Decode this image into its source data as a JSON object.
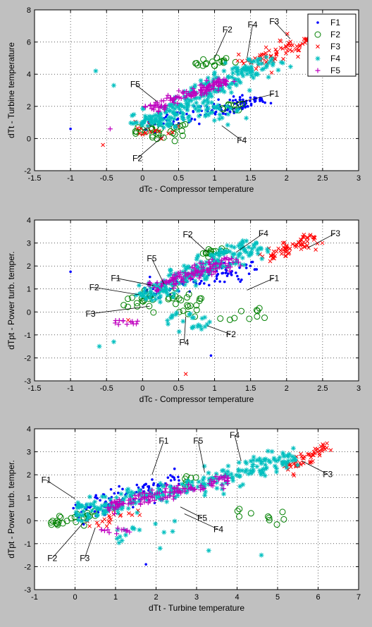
{
  "colors": {
    "F1": "#0000ff",
    "F2": "#008000",
    "F3": "#ff0000",
    "F4": "#00bfbf",
    "F5": "#bf00bf",
    "figure_bg": "#c0c0c0",
    "axes_bg": "#ffffff"
  },
  "chart_data": [
    {
      "type": "scatter",
      "xlabel": "dTc - Compressor temperature",
      "ylabel": "dTt - Turbine temperature",
      "xlim": [
        -1.5,
        3
      ],
      "ylim": [
        -2,
        8
      ],
      "xticks": [
        -1.5,
        -1,
        -0.5,
        0,
        0.5,
        1,
        1.5,
        2,
        2.5,
        3
      ],
      "yticks": [
        -2,
        0,
        2,
        4,
        6,
        8
      ],
      "grid": true,
      "legend": {
        "placement": "top-right",
        "entries": [
          "F1",
          "F2",
          "F3",
          "F4",
          "F5"
        ]
      },
      "series": [
        {
          "name": "F1",
          "marker": "dot",
          "clusters": [
            {
              "x0": 0.0,
              "y0": 0.6,
              "x1": 1.6,
              "y1": 2.6,
              "spread": 0.25,
              "n": 80
            },
            {
              "x0": 1.0,
              "y0": 1.5,
              "x1": 1.6,
              "y1": 2.5,
              "spread": 0.2,
              "n": 40
            }
          ],
          "points": [
            {
              "x": -1.0,
              "y": 0.6
            }
          ]
        },
        {
          "name": "F2",
          "marker": "circle",
          "clusters": [
            {
              "x0": 0.8,
              "y0": 4.5,
              "x1": 1.2,
              "y1": 5.0,
              "spread": 0.15,
              "n": 18
            },
            {
              "x0": -0.1,
              "y0": 0.5,
              "x1": 0.6,
              "y1": 0.4,
              "spread": 0.25,
              "n": 30
            },
            {
              "x0": 1.1,
              "y0": 2.0,
              "x1": 1.4,
              "y1": 2.0,
              "spread": 0.2,
              "n": 10
            }
          ],
          "points": []
        },
        {
          "name": "F3",
          "marker": "x",
          "clusters": [
            {
              "x0": 1.4,
              "y0": 4.5,
              "x1": 2.4,
              "y1": 6.3,
              "spread": 0.25,
              "n": 80
            },
            {
              "x0": -0.1,
              "y0": 0.5,
              "x1": 0.6,
              "y1": 0.5,
              "spread": 0.2,
              "n": 20
            }
          ],
          "points": [
            {
              "x": -0.55,
              "y": -0.4
            }
          ]
        },
        {
          "name": "F4",
          "marker": "star",
          "clusters": [
            {
              "x0": 0.0,
              "y0": 0.8,
              "x1": 1.8,
              "y1": 5.0,
              "spread": 0.3,
              "n": 220
            },
            {
              "x0": 0.2,
              "y0": 0.7,
              "x1": 1.2,
              "y1": 2.0,
              "spread": 0.35,
              "n": 60
            }
          ],
          "points": [
            {
              "x": -0.65,
              "y": 4.2
            },
            {
              "x": -0.4,
              "y": 3.3
            }
          ]
        },
        {
          "name": "F5",
          "marker": "plus",
          "clusters": [
            {
              "x0": 0.1,
              "y0": 1.8,
              "x1": 1.2,
              "y1": 3.7,
              "spread": 0.15,
              "n": 130
            }
          ],
          "points": [
            {
              "x": -0.45,
              "y": 0.6
            }
          ]
        }
      ],
      "annotations": [
        {
          "text": "F2",
          "tx": 1.1,
          "ty": 6.6,
          "px": 1.0,
          "py": 5.0
        },
        {
          "text": "F4",
          "tx": 1.45,
          "ty": 6.9,
          "px": 1.45,
          "py": 5.0
        },
        {
          "text": "F3",
          "tx": 1.75,
          "ty": 7.1,
          "px": 2.05,
          "py": 6.2
        },
        {
          "text": "F5",
          "tx": -0.18,
          "ty": 3.2,
          "px": 0.2,
          "py": 2.3
        },
        {
          "text": "F1",
          "tx": 1.75,
          "ty": 2.6,
          "px": 1.3,
          "py": 2.2
        },
        {
          "text": "F4",
          "tx": 1.3,
          "ty": -0.3,
          "px": 1.1,
          "py": 0.8
        },
        {
          "text": "F2",
          "tx": -0.15,
          "ty": -1.4,
          "px": 0.3,
          "py": 0.2
        }
      ]
    },
    {
      "type": "scatter",
      "xlabel": "dTc - Compressor temperature",
      "ylabel": "dTpt - Power turb. temper.",
      "xlim": [
        -1.5,
        3
      ],
      "ylim": [
        -3,
        4
      ],
      "xticks": [
        -1.5,
        -1,
        -0.5,
        0,
        0.5,
        1,
        1.5,
        2,
        2.5,
        3
      ],
      "yticks": [
        -3,
        -2,
        -1,
        0,
        1,
        2,
        3,
        4
      ],
      "grid": true,
      "series": [
        {
          "name": "F1",
          "marker": "dot",
          "clusters": [
            {
              "x0": 0.0,
              "y0": 0.8,
              "x1": 1.6,
              "y1": 2.0,
              "spread": 0.2,
              "n": 90
            }
          ],
          "points": [
            {
              "x": -1.0,
              "y": 1.75
            },
            {
              "x": 0.95,
              "y": -1.9
            }
          ]
        },
        {
          "name": "F2",
          "marker": "circle",
          "clusters": [
            {
              "x0": 0.85,
              "y0": 2.5,
              "x1": 1.2,
              "y1": 2.7,
              "spread": 0.12,
              "n": 14
            },
            {
              "x0": -0.3,
              "y0": 0.6,
              "x1": 0.8,
              "y1": 0.3,
              "spread": 0.25,
              "n": 40
            },
            {
              "x0": 1.0,
              "y0": -0.2,
              "x1": 1.7,
              "y1": 0.0,
              "spread": 0.2,
              "n": 10
            }
          ],
          "points": []
        },
        {
          "name": "F3",
          "marker": "x",
          "clusters": [
            {
              "x0": 1.7,
              "y0": 2.3,
              "x1": 2.4,
              "y1": 3.3,
              "spread": 0.18,
              "n": 70
            }
          ],
          "points": [
            {
              "x": 0.6,
              "y": -2.7
            },
            {
              "x": -0.2,
              "y": -0.35
            }
          ]
        },
        {
          "name": "F4",
          "marker": "star",
          "clusters": [
            {
              "x0": 0.0,
              "y0": 0.6,
              "x1": 1.6,
              "y1": 3.0,
              "spread": 0.25,
              "n": 220
            },
            {
              "x0": 0.3,
              "y0": -0.3,
              "x1": 0.9,
              "y1": -0.6,
              "spread": 0.25,
              "n": 25
            }
          ],
          "points": [
            {
              "x": -0.6,
              "y": -1.5
            },
            {
              "x": -0.4,
              "y": -1.3
            }
          ]
        },
        {
          "name": "F5",
          "marker": "plus",
          "clusters": [
            {
              "x0": 0.1,
              "y0": 1.0,
              "x1": 1.3,
              "y1": 2.3,
              "spread": 0.15,
              "n": 110
            },
            {
              "x0": -0.4,
              "y0": -0.45,
              "x1": -0.05,
              "y1": -0.45,
              "spread": 0.06,
              "n": 12
            }
          ],
          "points": []
        }
      ],
      "annotations": [
        {
          "text": "F2",
          "tx": 0.55,
          "ty": 3.25,
          "px": 0.9,
          "py": 2.6
        },
        {
          "text": "F4",
          "tx": 1.6,
          "ty": 3.3,
          "px": 1.3,
          "py": 2.6
        },
        {
          "text": "F3",
          "tx": 2.6,
          "ty": 3.3,
          "px": 2.3,
          "py": 2.8
        },
        {
          "text": "F5",
          "tx": 0.05,
          "ty": 2.2,
          "px": 0.3,
          "py": 1.2
        },
        {
          "text": "F1",
          "tx": -0.45,
          "ty": 1.35,
          "px": 0.15,
          "py": 1.15
        },
        {
          "text": "F1",
          "tx": 1.75,
          "ty": 1.35,
          "px": 1.45,
          "py": 0.95
        },
        {
          "text": "F2",
          "tx": -0.75,
          "ty": 0.95,
          "px": -0.05,
          "py": 0.75
        },
        {
          "text": "F3",
          "tx": -0.8,
          "ty": -0.2,
          "px": 0.1,
          "py": 0.25
        },
        {
          "text": "F4",
          "tx": 0.5,
          "ty": -1.45,
          "px": 0.6,
          "py": -0.2
        },
        {
          "text": "F2",
          "tx": 1.15,
          "ty": -1.1,
          "px": 0.9,
          "py": -0.6
        }
      ]
    },
    {
      "type": "scatter",
      "xlabel": "dTt - Turbine temperature",
      "ylabel": "dTpt - Power turb. temper.",
      "xlim": [
        -1,
        7
      ],
      "ylim": [
        -3,
        4
      ],
      "xticks": [
        -1,
        0,
        1,
        2,
        3,
        4,
        5,
        6,
        7
      ],
      "yticks": [
        -3,
        -2,
        -1,
        0,
        1,
        2,
        3,
        4
      ],
      "grid": true,
      "series": [
        {
          "name": "F1",
          "marker": "dot",
          "clusters": [
            {
              "x0": 0.0,
              "y0": 0.3,
              "x1": 2.6,
              "y1": 1.8,
              "spread": 0.25,
              "n": 100
            }
          ],
          "points": [
            {
              "x": 1.75,
              "y": -1.9
            }
          ]
        },
        {
          "name": "F2",
          "marker": "circle",
          "clusters": [
            {
              "x0": -0.6,
              "y0": -0.1,
              "x1": 0.5,
              "y1": 0.2,
              "spread": 0.15,
              "n": 25
            },
            {
              "x0": 4.0,
              "y0": 0.5,
              "x1": 5.2,
              "y1": 0.2,
              "spread": 0.2,
              "n": 10
            },
            {
              "x0": 2.6,
              "y0": 1.6,
              "x1": 3.0,
              "y1": 1.9,
              "spread": 0.1,
              "n": 6
            }
          ],
          "points": []
        },
        {
          "name": "F3",
          "marker": "x",
          "clusters": [
            {
              "x0": 5.2,
              "y0": 2.3,
              "x1": 6.3,
              "y1": 3.3,
              "spread": 0.15,
              "n": 60
            },
            {
              "x0": 0.3,
              "y0": -0.2,
              "x1": 1.6,
              "y1": 0.5,
              "spread": 0.15,
              "n": 20
            }
          ],
          "points": []
        },
        {
          "name": "F4",
          "marker": "star",
          "clusters": [
            {
              "x0": 0.0,
              "y0": 0.3,
              "x1": 5.5,
              "y1": 2.7,
              "spread": 0.25,
              "n": 260
            },
            {
              "x0": 1.0,
              "y0": -0.6,
              "x1": 2.5,
              "y1": -0.5,
              "spread": 0.25,
              "n": 15
            }
          ],
          "points": [
            {
              "x": 3.3,
              "y": -1.3
            },
            {
              "x": 4.6,
              "y": -1.5
            },
            {
              "x": 2.1,
              "y": -1.2
            }
          ]
        },
        {
          "name": "F5",
          "marker": "plus",
          "clusters": [
            {
              "x0": 0.8,
              "y0": 0.6,
              "x1": 3.8,
              "y1": 1.8,
              "spread": 0.15,
              "n": 120
            },
            {
              "x0": 0.6,
              "y0": -0.45,
              "x1": 1.4,
              "y1": -0.45,
              "spread": 0.08,
              "n": 12
            }
          ],
          "points": []
        }
      ],
      "annotations": [
        {
          "text": "F1",
          "tx": 2.05,
          "ty": 3.35,
          "px": 1.9,
          "py": 2.0
        },
        {
          "text": "F5",
          "tx": 2.9,
          "ty": 3.35,
          "px": 3.2,
          "py": 2.1
        },
        {
          "text": "F4",
          "tx": 3.8,
          "ty": 3.6,
          "px": 4.1,
          "py": 2.6
        },
        {
          "text": "F3",
          "tx": 6.1,
          "ty": 1.9,
          "px": 5.6,
          "py": 2.6
        },
        {
          "text": "F1",
          "tx": -0.85,
          "ty": 1.65,
          "px": 0.0,
          "py": 0.95
        },
        {
          "text": "F4",
          "tx": 3.4,
          "ty": -0.5,
          "px": 2.7,
          "py": 0.3
        },
        {
          "text": "F5",
          "tx": 3.0,
          "ty": 0.0,
          "px": 2.6,
          "py": 0.6
        },
        {
          "text": "F2",
          "tx": -0.7,
          "ty": -1.75,
          "px": 0.2,
          "py": -0.1
        },
        {
          "text": "F3",
          "tx": 0.1,
          "ty": -1.75,
          "px": 0.5,
          "py": -0.3
        }
      ]
    }
  ]
}
